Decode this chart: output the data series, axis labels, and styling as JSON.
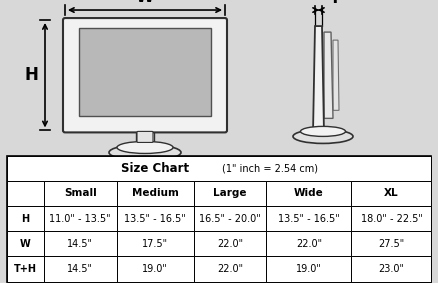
{
  "title": "Size Chart",
  "subtitle": "(1\" inch = 2.54 cm)",
  "columns": [
    "",
    "Small",
    "Medium",
    "Large",
    "Wide",
    "XL"
  ],
  "rows": [
    [
      "H",
      "11.0\" - 13.5\"",
      "13.5\" - 16.5\"",
      "16.5\" - 20.0\"",
      "13.5\" - 16.5\"",
      "18.0\" - 22.5\""
    ],
    [
      "W",
      "14.5\"",
      "17.5\"",
      "22.0\"",
      "22.0\"",
      "27.5\""
    ],
    [
      "T+H",
      "14.5\"",
      "19.0\"",
      "22.0\"",
      "19.0\"",
      "23.0\""
    ]
  ],
  "bg_color": "#d8d8d8",
  "table_bg": "#ffffff",
  "monitor_color": "#f2f2f2",
  "screen_color": "#b8b8b8",
  "border_color": "#303030"
}
